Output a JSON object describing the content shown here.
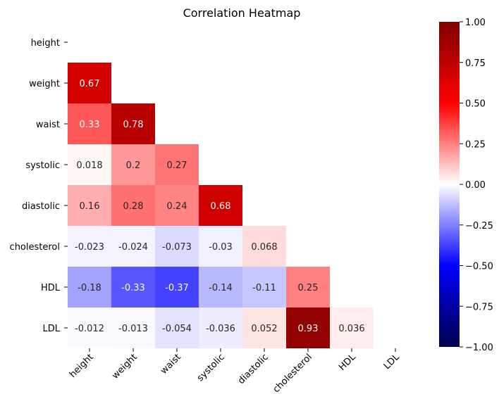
{
  "chart_data": {
    "type": "heatmap",
    "title": "Correlation Heatmap",
    "variables": [
      "height",
      "weight",
      "waist",
      "systolic",
      "diastolic",
      "cholesterol",
      "HDL",
      "LDL"
    ],
    "mask": "upper-triangle-including-diagonal",
    "cells": [
      {
        "row": "weight",
        "col": "height",
        "value": 0.67,
        "label": "0.67"
      },
      {
        "row": "waist",
        "col": "height",
        "value": 0.33,
        "label": "0.33"
      },
      {
        "row": "waist",
        "col": "weight",
        "value": 0.78,
        "label": "0.78"
      },
      {
        "row": "systolic",
        "col": "height",
        "value": 0.018,
        "label": "0.018"
      },
      {
        "row": "systolic",
        "col": "weight",
        "value": 0.2,
        "label": "0.2"
      },
      {
        "row": "systolic",
        "col": "waist",
        "value": 0.27,
        "label": "0.27"
      },
      {
        "row": "diastolic",
        "col": "height",
        "value": 0.16,
        "label": "0.16"
      },
      {
        "row": "diastolic",
        "col": "weight",
        "value": 0.28,
        "label": "0.28"
      },
      {
        "row": "diastolic",
        "col": "waist",
        "value": 0.24,
        "label": "0.24"
      },
      {
        "row": "diastolic",
        "col": "systolic",
        "value": 0.68,
        "label": "0.68"
      },
      {
        "row": "cholesterol",
        "col": "height",
        "value": -0.023,
        "label": "-0.023"
      },
      {
        "row": "cholesterol",
        "col": "weight",
        "value": -0.024,
        "label": "-0.024"
      },
      {
        "row": "cholesterol",
        "col": "waist",
        "value": -0.073,
        "label": "-0.073"
      },
      {
        "row": "cholesterol",
        "col": "systolic",
        "value": -0.03,
        "label": "-0.03"
      },
      {
        "row": "cholesterol",
        "col": "diastolic",
        "value": 0.068,
        "label": "0.068"
      },
      {
        "row": "HDL",
        "col": "height",
        "value": -0.18,
        "label": "-0.18"
      },
      {
        "row": "HDL",
        "col": "weight",
        "value": -0.33,
        "label": "-0.33"
      },
      {
        "row": "HDL",
        "col": "waist",
        "value": -0.37,
        "label": "-0.37"
      },
      {
        "row": "HDL",
        "col": "systolic",
        "value": -0.14,
        "label": "-0.14"
      },
      {
        "row": "HDL",
        "col": "diastolic",
        "value": -0.11,
        "label": "-0.11"
      },
      {
        "row": "HDL",
        "col": "cholesterol",
        "value": 0.25,
        "label": "0.25"
      },
      {
        "row": "LDL",
        "col": "height",
        "value": -0.012,
        "label": "-0.012"
      },
      {
        "row": "LDL",
        "col": "weight",
        "value": -0.013,
        "label": "-0.013"
      },
      {
        "row": "LDL",
        "col": "waist",
        "value": -0.054,
        "label": "-0.054"
      },
      {
        "row": "LDL",
        "col": "systolic",
        "value": -0.036,
        "label": "-0.036"
      },
      {
        "row": "LDL",
        "col": "diastolic",
        "value": 0.052,
        "label": "0.052"
      },
      {
        "row": "LDL",
        "col": "cholesterol",
        "value": 0.93,
        "label": "0.93"
      },
      {
        "row": "LDL",
        "col": "HDL",
        "value": 0.036,
        "label": "0.036"
      }
    ],
    "colorbar": {
      "colormap": "seismic",
      "range": [
        -1,
        1
      ],
      "ticks": [
        1,
        0.75,
        0.5,
        0.25,
        0,
        -0.25,
        -0.5,
        -0.75,
        -1
      ],
      "tick_labels": [
        "1.00",
        "0.75",
        "0.50",
        "0.25",
        "0.00",
        "−0.25",
        "−0.50",
        "−0.75",
        "−1.00"
      ],
      "placement": "right"
    },
    "colors": {
      "negative_end": "#00004c",
      "negative_mid": "#0000ff",
      "neutral": "#ffffff",
      "positive_mid": "#ff0000",
      "positive_end": "#800000"
    },
    "x_tick_rotation_degrees": 45
  }
}
